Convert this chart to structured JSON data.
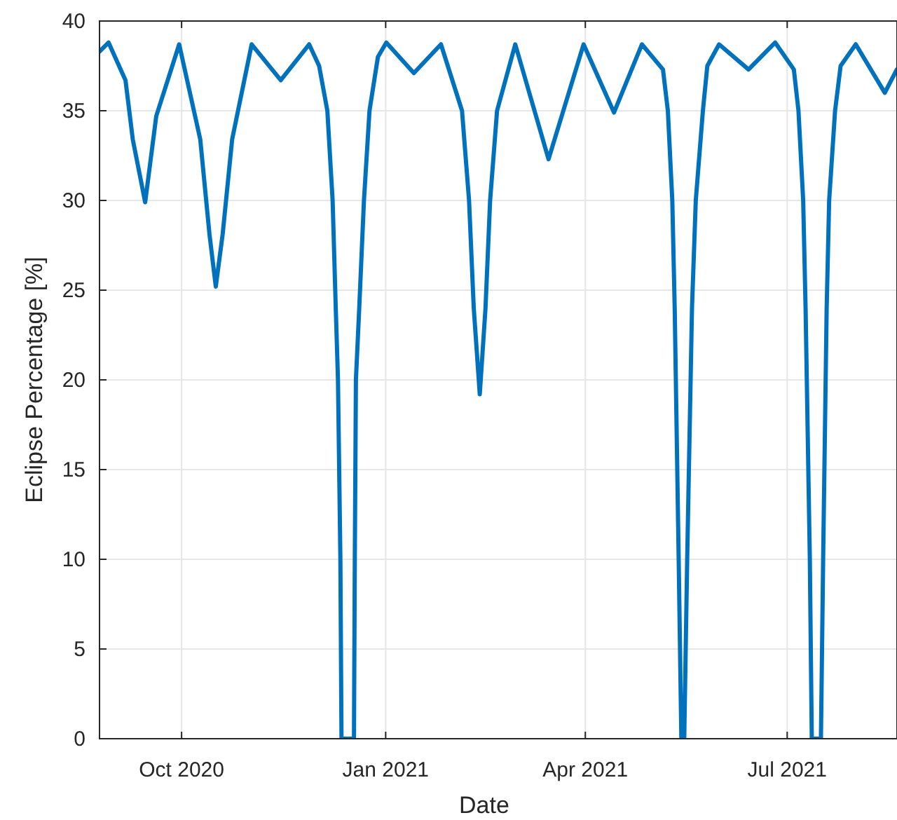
{
  "chart_data": {
    "type": "line",
    "xlabel": "Date",
    "ylabel": "Eclipse Percentage [%]",
    "color": "#0072bd",
    "grid": true,
    "xlim": [
      "2020-08-25",
      "2021-08-19T12:00"
    ],
    "ylim": [
      0,
      40
    ],
    "yticks": [
      0,
      5,
      10,
      15,
      20,
      25,
      30,
      35,
      40
    ],
    "xticks": [
      {
        "value": "2020-10-01",
        "label": "Oct 2020"
      },
      {
        "value": "2021-01-01",
        "label": "Jan 2021"
      },
      {
        "value": "2021-04-01",
        "label": "Apr 2021"
      },
      {
        "value": "2021-07-01",
        "label": "Jul 2021"
      }
    ],
    "x": [
      "2020-08-25",
      "2020-08-29T02:00",
      "2020-09-05T17:00",
      "2020-09-09",
      "2020-09-14T14:00",
      "2020-09-19T14:00",
      "2020-09-29T22:00",
      "2020-10-09T10:00",
      "2020-10-13T14:00",
      "2020-10-16T10:00",
      "2020-10-19T12:00",
      "2020-10-23T19:00",
      "2020-11-01T14:00",
      "2020-11-14T17:00",
      "2020-11-27T12:00",
      "2020-12-02",
      "2020-12-05T17:00",
      "2020-12-08T02:00",
      "2020-12-09T12:00",
      "2020-12-10T12:00",
      "2020-12-11T14:00",
      "2020-12-12T02:00",
      "2020-12-17T17:00",
      "2020-12-18T02:00",
      "2020-12-18T14:00",
      "2020-12-20T02:00",
      "2020-12-22T05:00",
      "2020-12-24T17:00",
      "2020-12-28T12:00",
      "2021-01-01T07:00",
      "2021-01-13T17:00",
      "2021-01-25T22:00",
      "2021-02-04T10:00",
      "2021-02-07T14:00",
      "2021-02-09T17:00",
      "2021-02-12T10:00",
      "2021-02-15",
      "2021-02-17T02:00",
      "2021-02-20T05:00",
      "2021-02-28T10:00",
      "2021-03-15T10:00",
      "2021-03-31T05:00",
      "2021-04-13T22:00",
      "2021-04-26T12:00",
      "2021-05-06",
      "2021-05-08T05:00",
      "2021-05-10T05:00",
      "2021-05-11T07:00",
      "2021-05-13T02:00",
      "2021-05-14T07:00",
      "2021-05-15T14:00",
      "2021-05-16T22:00",
      "2021-05-19T02:00",
      "2021-05-20T19:00",
      "2021-05-24",
      "2021-05-26",
      "2021-05-31T07:00",
      "2021-06-13T14:00",
      "2021-06-25T14:00",
      "2021-07-04",
      "2021-07-06T02:00",
      "2021-07-08T05:00",
      "2021-07-09T07:00",
      "2021-07-11T05:00",
      "2021-07-12T02:00",
      "2021-07-16T05:00",
      "2021-07-17T05:00",
      "2021-07-18T19:00",
      "2021-07-19T22:00",
      "2021-07-22T14:00",
      "2021-07-25T02:00",
      "2021-07-31T22:00",
      "2021-08-14",
      "2021-08-19T10:00"
    ],
    "values": [
      38.3,
      38.8,
      36.7,
      33.4,
      29.9,
      34.7,
      38.7,
      33.4,
      28.1,
      25.2,
      28.1,
      33.4,
      38.7,
      36.7,
      38.7,
      37.5,
      35,
      30,
      24,
      20,
      10,
      0,
      0,
      10,
      20,
      24,
      30,
      35,
      38,
      38.8,
      37.1,
      38.7,
      35,
      30,
      24,
      19.2,
      24,
      30,
      35,
      38.7,
      32.3,
      38.7,
      34.9,
      38.7,
      37.3,
      35,
      30,
      24,
      10,
      0,
      0,
      10,
      24,
      30,
      35,
      37.5,
      38.7,
      37.3,
      38.8,
      37.3,
      35,
      30,
      24,
      10,
      0,
      0,
      10,
      24,
      30,
      35,
      37.5,
      38.7,
      36,
      37.3
    ]
  }
}
